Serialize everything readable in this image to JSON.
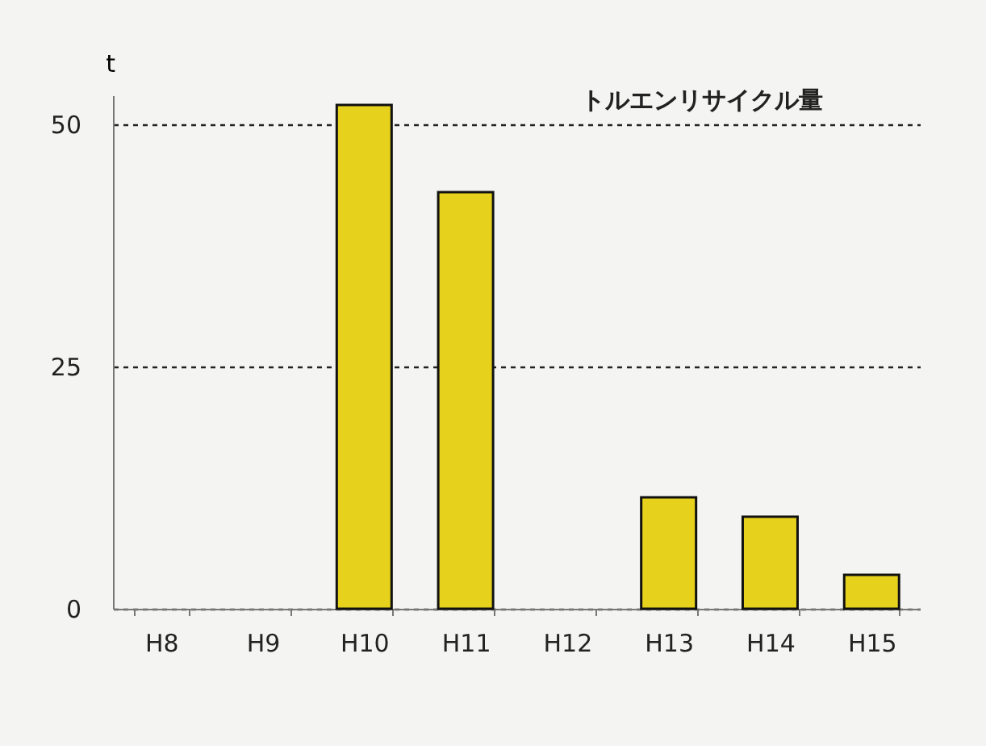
{
  "chart_data": {
    "type": "bar",
    "title": "トルエンリサイクル量",
    "ylabel": "t",
    "categories": [
      "H8",
      "H9",
      "H10",
      "H11",
      "H12",
      "H13",
      "H14",
      "H15"
    ],
    "values": [
      null,
      null,
      52,
      43,
      null,
      11.5,
      9.5,
      3.5
    ],
    "color": "#e6d21c",
    "ylim": [
      0,
      53
    ],
    "yticks": [
      0,
      25,
      50
    ],
    "grid": "y",
    "line_style": "dashed"
  }
}
